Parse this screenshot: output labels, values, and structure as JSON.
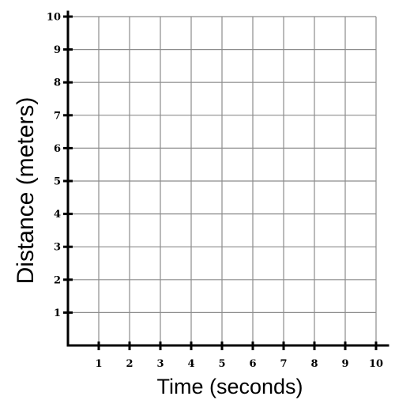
{
  "chart_data": {
    "type": "scatter",
    "title": "",
    "xlabel": "Time (seconds)",
    "ylabel": "Distance (meters)",
    "xlim": [
      0,
      10
    ],
    "ylim": [
      0,
      10
    ],
    "x_ticks": [
      "1",
      "2",
      "3",
      "4",
      "5",
      "6",
      "7",
      "8",
      "9",
      "10"
    ],
    "y_ticks": [
      "1",
      "2",
      "3",
      "4",
      "5",
      "6",
      "7",
      "8",
      "9",
      "10"
    ],
    "grid": true,
    "series": [],
    "colors": {
      "grid": "#8c8c8c",
      "axis": "#000000"
    }
  }
}
